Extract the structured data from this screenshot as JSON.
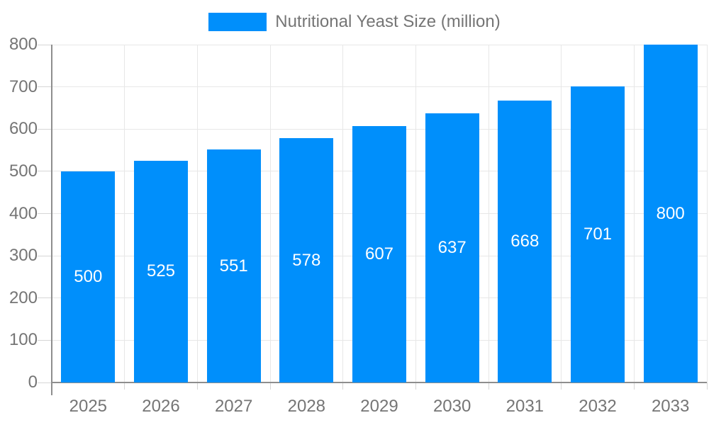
{
  "chart_data": {
    "type": "bar",
    "title": "Nutritional Yeast Size (million)",
    "legend": {
      "position": "top",
      "label": "Nutritional Yeast Size (million)"
    },
    "categories": [
      "2025",
      "2026",
      "2027",
      "2028",
      "2029",
      "2030",
      "2031",
      "2032",
      "2033"
    ],
    "values": [
      500,
      525,
      551,
      578,
      607,
      637,
      668,
      701,
      800
    ],
    "xlabel": "",
    "ylabel": "",
    "ylim": [
      0,
      800
    ],
    "ytick_step": 100,
    "ytick_labels": [
      "0",
      "100",
      "200",
      "300",
      "400",
      "500",
      "600",
      "700",
      "800"
    ],
    "grid": true,
    "colors": {
      "bar": "#008ffb",
      "bar_value_text": "#ffffff",
      "axis_line": "#8e8e8e",
      "gridline": "#e7e7e7",
      "tick": "#d6d6d6",
      "axis_text": "#757575"
    }
  }
}
